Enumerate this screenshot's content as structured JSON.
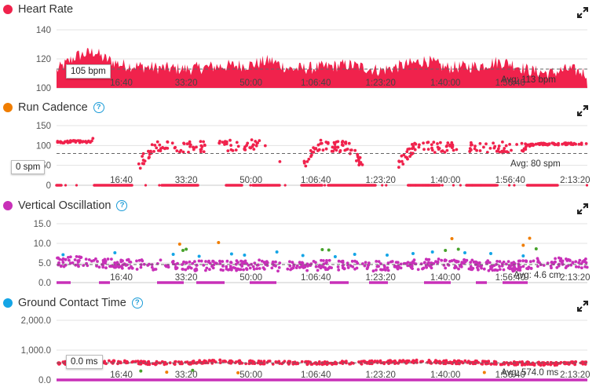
{
  "colors": {
    "red": "#f0224c",
    "orange": "#f07d00",
    "purple": "#c830b8",
    "blue": "#14a5e6",
    "green": "#47a32c"
  },
  "panels": [
    {
      "title": "Heart Rate",
      "dot_color": "#f0224c",
      "help": false,
      "tooltip": "105 bpm",
      "avg_label": "Avg: 113 bpm"
    },
    {
      "title": "Run Cadence",
      "dot_color": "#f07d00",
      "help": true,
      "tooltip": "0 spm",
      "avg_label": "Avg: 80 spm"
    },
    {
      "title": "Vertical Oscillation",
      "dot_color": "#c830b8",
      "help": true,
      "tooltip": "",
      "avg_label": "Avg: 4.6 cm"
    },
    {
      "title": "Ground Contact Time",
      "dot_color": "#14a5e6",
      "help": true,
      "tooltip": "0.0 ms",
      "avg_label": "Avg: 574.0 ms"
    }
  ],
  "chart_data": [
    {
      "type": "area",
      "title": "Heart Rate",
      "x_unit": "elapsed time",
      "x_ticks": [
        "16:40",
        "33:20",
        "50:00",
        "1:06:40",
        "1:23:20",
        "1:40:00",
        "1:56:40"
      ],
      "x_tick_seconds": [
        1000,
        2000,
        3000,
        4000,
        5000,
        6000,
        7000
      ],
      "xlim_seconds": [
        0,
        8190
      ],
      "y_ticks": [
        "100",
        "120",
        "140"
      ],
      "ylim": [
        100,
        140
      ],
      "average": 113,
      "grid": true,
      "series": [
        {
          "x_seconds": [
            0,
            300,
            600,
            700,
            1000,
            1500,
            2000,
            2500,
            3000,
            3300,
            3600,
            4000,
            4500,
            5000,
            5400,
            5700,
            6000,
            6500,
            6800,
            7000,
            7300,
            7600,
            7900,
            8190
          ],
          "values": [
            112,
            122,
            125,
            121,
            116,
            114,
            113,
            115,
            116,
            119,
            113,
            114,
            116,
            112,
            116,
            119,
            114,
            115,
            118,
            117,
            112,
            110,
            113,
            110
          ]
        }
      ]
    },
    {
      "type": "scatter",
      "title": "Run Cadence",
      "x_ticks": [
        "16:40",
        "33:20",
        "50:00",
        "1:06:40",
        "1:23:20",
        "1:40:00",
        "1:56:40",
        "2:13:20"
      ],
      "x_tick_seconds": [
        1000,
        2000,
        3000,
        4000,
        5000,
        6000,
        7000,
        8000
      ],
      "xlim_seconds": [
        0,
        8190
      ],
      "y_ticks": [
        "0",
        "50",
        "100",
        "150"
      ],
      "ylim": [
        0,
        150
      ],
      "average": 80,
      "grid": true,
      "series": [
        {
          "x_seconds": [
            0,
            300,
            600,
            1000,
            1500,
            2000,
            2500,
            3000,
            3300,
            3600,
            4000,
            4500,
            5000,
            5500,
            6000,
            6500,
            7000,
            7500,
            8000,
            8190
          ],
          "values": [
            108,
            110,
            109,
            0,
            97,
            95,
            98,
            103,
            101,
            0,
            100,
            97,
            0,
            94,
            97,
            93,
            96,
            104,
            104,
            103
          ]
        },
        {
          "x_seconds": [
            0,
            1200,
            2200,
            3600,
            4800,
            5300,
            6700,
            8100
          ],
          "values": [
            0,
            0,
            0,
            0,
            0,
            0,
            0,
            0
          ]
        }
      ]
    },
    {
      "type": "scatter",
      "title": "Vertical Oscillation",
      "x_ticks": [
        "16:40",
        "33:20",
        "50:00",
        "1:06:40",
        "1:23:20",
        "1:40:00",
        "1:56:40",
        "2:13:20"
      ],
      "x_tick_seconds": [
        1000,
        2000,
        3000,
        4000,
        5000,
        6000,
        7000,
        8000
      ],
      "xlim_seconds": [
        0,
        8190
      ],
      "y_ticks": [
        "0.0",
        "5.0",
        "10.0",
        "15.0"
      ],
      "ylim": [
        0,
        15
      ],
      "average": 4.6,
      "grid": true,
      "series": [
        {
          "color": "#c830b8",
          "x_seconds": [
            0,
            400,
            800,
            1500,
            2000,
            2600,
            3000,
            3500,
            4000,
            4500,
            5000,
            5500,
            6000,
            6500,
            7000,
            7500,
            8000,
            8190
          ],
          "values": [
            5.2,
            5.4,
            4.8,
            4.5,
            4.3,
            4.2,
            4.6,
            4.1,
            4.4,
            4.3,
            4.2,
            4.6,
            4.8,
            4.4,
            4.1,
            5.0,
            5.1,
            5.0
          ]
        },
        {
          "color": "#14a5e6",
          "x_seconds": [
            100,
            900,
            1800,
            2200,
            2700,
            2900,
            3400,
            3800,
            4300,
            4600,
            5100,
            5500,
            5800,
            6300,
            6700,
            7200
          ],
          "values": [
            7.1,
            7.6,
            7.2,
            6.7,
            7.3,
            7.0,
            7.8,
            6.9,
            6.6,
            7.2,
            7.0,
            7.4,
            7.8,
            7.6,
            7.4,
            6.8
          ]
        },
        {
          "color": "#47a32c",
          "x_seconds": [
            1950,
            2000,
            4100,
            4200,
            6000,
            6200,
            7400
          ],
          "values": [
            8.2,
            8.5,
            8.4,
            8.3,
            8.2,
            8.5,
            8.6
          ]
        },
        {
          "color": "#f07d00",
          "x_seconds": [
            1900,
            2500,
            6100,
            7200,
            7300
          ],
          "values": [
            9.8,
            10.2,
            11.2,
            9.5,
            11.3
          ]
        }
      ]
    },
    {
      "type": "scatter",
      "title": "Ground Contact Time",
      "x_ticks": [
        "16:40",
        "33:20",
        "50:00",
        "1:06:40",
        "1:23:20",
        "1:40:00",
        "1:56:40",
        "2:13:20"
      ],
      "x_tick_seconds": [
        1000,
        2000,
        3000,
        4000,
        5000,
        6000,
        7000,
        8000
      ],
      "xlim_seconds": [
        0,
        8190
      ],
      "y_ticks": [
        "0.0",
        "1,000.0",
        "2,000.0"
      ],
      "ylim": [
        0,
        2000
      ],
      "average": 574.0,
      "grid": true,
      "series": [
        {
          "color": "#f0224c",
          "x_seconds": [
            0,
            500,
            1000,
            1500,
            2000,
            2500,
            3000,
            3500,
            4000,
            4500,
            5000,
            5500,
            6000,
            6500,
            7000,
            7500,
            8000,
            8190
          ],
          "values": [
            560,
            580,
            600,
            560,
            580,
            620,
            590,
            570,
            560,
            580,
            590,
            620,
            600,
            580,
            560,
            540,
            560,
            560
          ]
        },
        {
          "color": "#c830b8",
          "x_seconds": [
            0,
            8190
          ],
          "values": [
            0,
            0
          ]
        },
        {
          "color": "#47a32c",
          "x_seconds": [
            1300,
            2100
          ],
          "values": [
            300,
            320
          ]
        },
        {
          "color": "#f07d00",
          "x_seconds": [
            1700,
            2800,
            6600
          ],
          "values": [
            260,
            240,
            250
          ]
        }
      ]
    }
  ]
}
